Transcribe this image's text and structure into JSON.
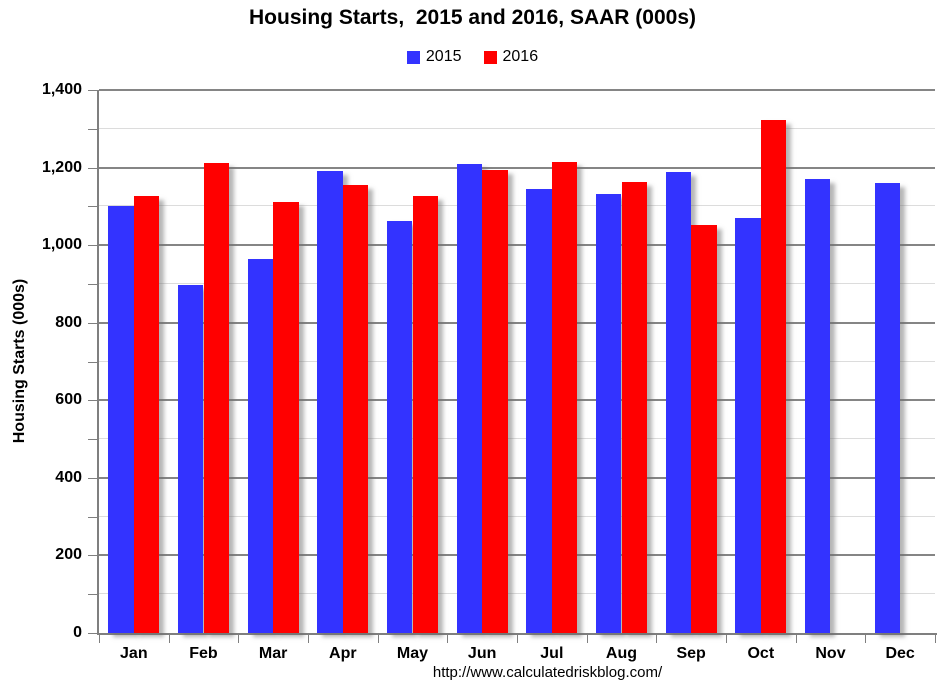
{
  "page": {
    "title": "Housing Starts,  2015 and 2016, SAAR (000s)",
    "source_url": "http://www.calculatedriskblog.com/"
  },
  "colors": {
    "series_2015": "#3333ff",
    "series_2016": "#ff0000",
    "grid_major": "#858585",
    "grid_minor": "#dcdcdc",
    "axis": "#7f7f7f",
    "background": "#ffffff",
    "text": "#000000"
  },
  "chart_data": {
    "type": "bar",
    "title": "Housing Starts,  2015 and 2016, SAAR (000s)",
    "xlabel": "",
    "ylabel": "Housing Starts (000s)",
    "ylim": [
      0,
      1400
    ],
    "grid": true,
    "grid_minor_step": 100,
    "legend_position": "top-center",
    "y_major_ticks": [
      0,
      200,
      400,
      600,
      800,
      1000,
      1200,
      1400
    ],
    "y_tick_labels": [
      "0",
      "200",
      "400",
      "600",
      "800",
      "1,000",
      "1,200",
      "1,400"
    ],
    "categories": [
      "Jan",
      "Feb",
      "Mar",
      "Apr",
      "May",
      "Jun",
      "Jul",
      "Aug",
      "Sep",
      "Oct",
      "Nov",
      "Dec"
    ],
    "series": [
      {
        "name": "2015",
        "color": "#3333ff",
        "values": [
          1101,
          896,
          964,
          1191,
          1062,
          1210,
          1146,
          1131,
          1188,
          1071,
          1170,
          1160
        ]
      },
      {
        "name": "2016",
        "color": "#ff0000",
        "values": [
          1127,
          1212,
          1112,
          1154,
          1127,
          1193,
          1215,
          1162,
          1052,
          1323,
          null,
          null
        ]
      }
    ]
  }
}
